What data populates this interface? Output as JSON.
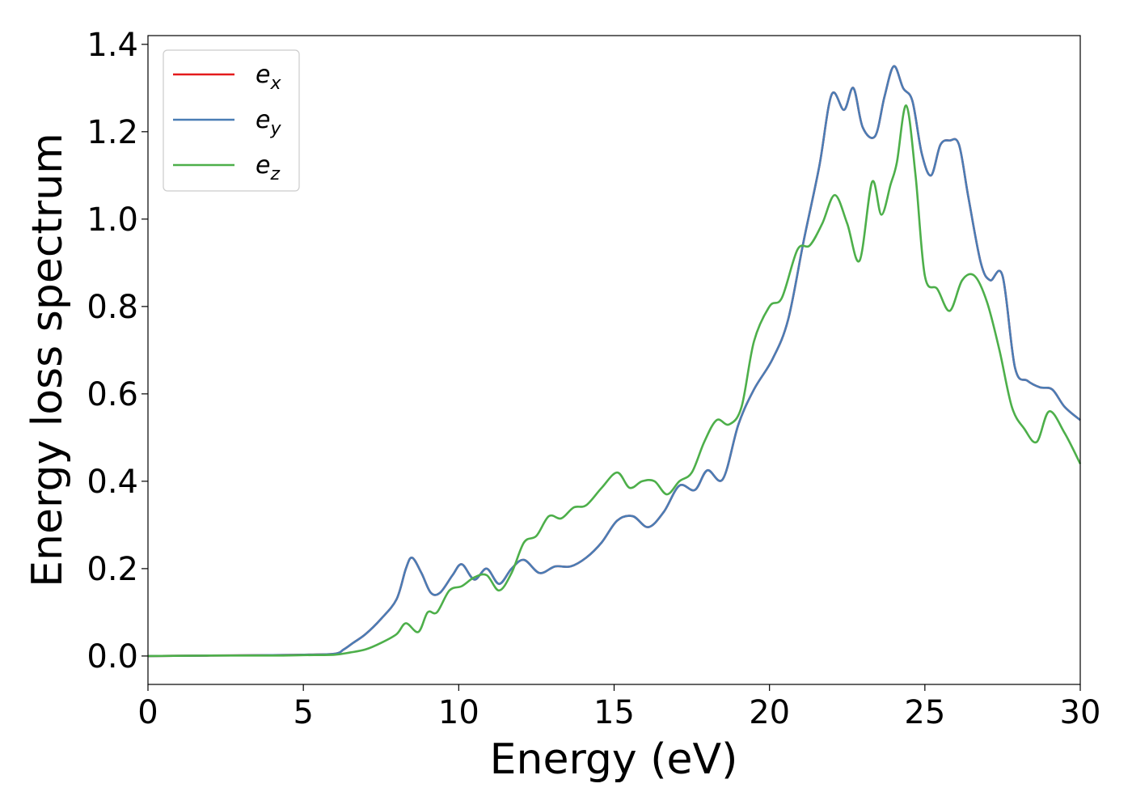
{
  "chart_data": {
    "type": "line",
    "xlabel": "Energy (eV)",
    "ylabel": "Energy loss spectrum",
    "xlim": [
      0,
      30
    ],
    "ylim": [
      -0.065,
      1.42
    ],
    "xticks": [
      0,
      5,
      10,
      15,
      20,
      25,
      30
    ],
    "xtick_labels": [
      "0",
      "5",
      "10",
      "15",
      "20",
      "25",
      "30"
    ],
    "yticks": [
      0.0,
      0.2,
      0.4,
      0.6,
      0.8,
      1.0,
      1.2,
      1.4
    ],
    "ytick_labels": [
      "0.0",
      "0.2",
      "0.4",
      "0.6",
      "0.8",
      "1.0",
      "1.2",
      "1.4"
    ],
    "grid": false,
    "legend_position": "top-left",
    "series": [
      {
        "name": "e",
        "sub": "x",
        "color": "#e41a1c",
        "x": [
          0,
          2,
          4,
          5,
          6,
          6.3,
          6.6,
          7.0,
          7.5,
          8.0,
          8.3,
          8.5,
          8.8,
          9.1,
          9.4,
          9.8,
          10.1,
          10.5,
          10.9,
          11.3,
          11.7,
          12.1,
          12.6,
          13.1,
          13.6,
          14.1,
          14.6,
          15.1,
          15.6,
          16.1,
          16.6,
          17.1,
          17.6,
          18.0,
          18.5,
          19.0,
          19.5,
          20.1,
          20.6,
          21.1,
          21.6,
          22.0,
          22.4,
          22.7,
          23.0,
          23.4,
          23.7,
          24.0,
          24.3,
          24.6,
          24.9,
          25.2,
          25.5,
          25.8,
          26.1,
          26.4,
          26.8,
          27.1,
          27.5,
          27.9,
          28.3,
          28.7,
          29.1,
          29.5,
          30.0
        ],
        "y": [
          0.0,
          0.001,
          0.002,
          0.003,
          0.005,
          0.015,
          0.03,
          0.05,
          0.085,
          0.13,
          0.2,
          0.225,
          0.19,
          0.145,
          0.145,
          0.185,
          0.21,
          0.175,
          0.2,
          0.165,
          0.2,
          0.22,
          0.19,
          0.205,
          0.205,
          0.225,
          0.26,
          0.31,
          0.32,
          0.295,
          0.33,
          0.39,
          0.38,
          0.425,
          0.405,
          0.53,
          0.61,
          0.68,
          0.77,
          0.95,
          1.12,
          1.285,
          1.25,
          1.3,
          1.21,
          1.19,
          1.28,
          1.35,
          1.3,
          1.27,
          1.15,
          1.1,
          1.17,
          1.18,
          1.17,
          1.05,
          0.9,
          0.86,
          0.87,
          0.66,
          0.63,
          0.615,
          0.61,
          0.57,
          0.54
        ]
      },
      {
        "name": "e",
        "sub": "y",
        "color": "#4a7db5",
        "x": [
          0,
          2,
          4,
          5,
          6,
          6.3,
          6.6,
          7.0,
          7.5,
          8.0,
          8.3,
          8.5,
          8.8,
          9.1,
          9.4,
          9.8,
          10.1,
          10.5,
          10.9,
          11.3,
          11.7,
          12.1,
          12.6,
          13.1,
          13.6,
          14.1,
          14.6,
          15.1,
          15.6,
          16.1,
          16.6,
          17.1,
          17.6,
          18.0,
          18.5,
          19.0,
          19.5,
          20.1,
          20.6,
          21.1,
          21.6,
          22.0,
          22.4,
          22.7,
          23.0,
          23.4,
          23.7,
          24.0,
          24.3,
          24.6,
          24.9,
          25.2,
          25.5,
          25.8,
          26.1,
          26.4,
          26.8,
          27.1,
          27.5,
          27.9,
          28.3,
          28.7,
          29.1,
          29.5,
          30.0
        ],
        "y": [
          0.0,
          0.001,
          0.002,
          0.003,
          0.005,
          0.015,
          0.03,
          0.05,
          0.085,
          0.13,
          0.2,
          0.225,
          0.19,
          0.145,
          0.145,
          0.185,
          0.21,
          0.175,
          0.2,
          0.165,
          0.2,
          0.22,
          0.19,
          0.205,
          0.205,
          0.225,
          0.26,
          0.31,
          0.32,
          0.295,
          0.33,
          0.39,
          0.38,
          0.425,
          0.405,
          0.53,
          0.61,
          0.68,
          0.77,
          0.95,
          1.12,
          1.285,
          1.25,
          1.3,
          1.21,
          1.19,
          1.28,
          1.35,
          1.3,
          1.27,
          1.15,
          1.1,
          1.17,
          1.18,
          1.17,
          1.05,
          0.9,
          0.86,
          0.87,
          0.66,
          0.63,
          0.615,
          0.61,
          0.57,
          0.54
        ]
      },
      {
        "name": "e",
        "sub": "z",
        "color": "#4daf4a",
        "x": [
          0,
          2,
          4,
          5,
          6,
          6.5,
          7.0,
          7.5,
          8.0,
          8.3,
          8.7,
          9.0,
          9.3,
          9.7,
          10.1,
          10.5,
          10.9,
          11.3,
          11.7,
          12.1,
          12.5,
          12.9,
          13.3,
          13.7,
          14.1,
          14.6,
          15.1,
          15.5,
          15.9,
          16.3,
          16.7,
          17.1,
          17.5,
          17.9,
          18.3,
          18.7,
          19.1,
          19.5,
          20.0,
          20.4,
          20.9,
          21.3,
          21.7,
          22.1,
          22.5,
          22.9,
          23.3,
          23.6,
          23.9,
          24.1,
          24.4,
          24.7,
          25.0,
          25.4,
          25.8,
          26.2,
          26.6,
          27.0,
          27.4,
          27.8,
          28.2,
          28.6,
          29.0,
          29.5,
          30.0
        ],
        "y": [
          0.0,
          0.001,
          0.001,
          0.002,
          0.003,
          0.008,
          0.015,
          0.03,
          0.05,
          0.075,
          0.055,
          0.1,
          0.1,
          0.15,
          0.16,
          0.18,
          0.185,
          0.15,
          0.19,
          0.26,
          0.275,
          0.32,
          0.315,
          0.34,
          0.345,
          0.385,
          0.42,
          0.385,
          0.4,
          0.4,
          0.37,
          0.4,
          0.42,
          0.49,
          0.54,
          0.53,
          0.57,
          0.72,
          0.8,
          0.82,
          0.93,
          0.94,
          0.99,
          1.055,
          0.99,
          0.905,
          1.085,
          1.01,
          1.08,
          1.13,
          1.26,
          1.1,
          0.87,
          0.84,
          0.79,
          0.86,
          0.87,
          0.81,
          0.7,
          0.57,
          0.52,
          0.49,
          0.56,
          0.51,
          0.44
        ]
      }
    ]
  }
}
